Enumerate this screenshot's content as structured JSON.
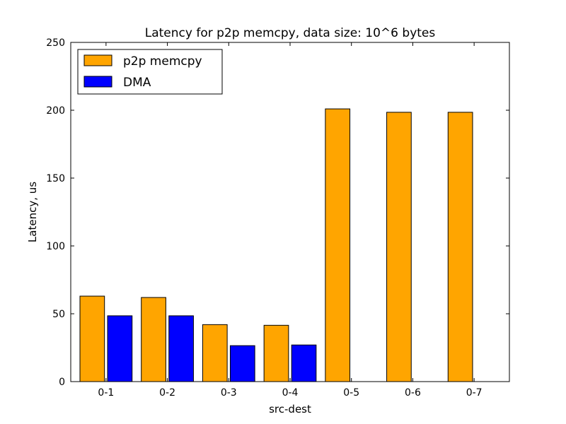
{
  "chart_data": {
    "type": "bar",
    "title": "Latency for p2p memcpy, data size: 10^6 bytes",
    "xlabel": "src-dest",
    "ylabel": "Latency, us",
    "categories": [
      "0-1",
      "0-2",
      "0-3",
      "0-4",
      "0-5",
      "0-6",
      "0-7"
    ],
    "series": [
      {
        "name": "p2p memcpy",
        "color": "#ffa500",
        "values": [
          63,
          62,
          42,
          41.5,
          201,
          198.5,
          198.5
        ]
      },
      {
        "name": "DMA",
        "color": "#0000ff",
        "values": [
          48.5,
          48.5,
          26.5,
          27,
          0,
          0,
          0
        ]
      }
    ],
    "ylim": [
      0,
      250
    ],
    "yticks": [
      0,
      50,
      100,
      150,
      200,
      250
    ],
    "legend_position": "top-left",
    "grid": false
  }
}
